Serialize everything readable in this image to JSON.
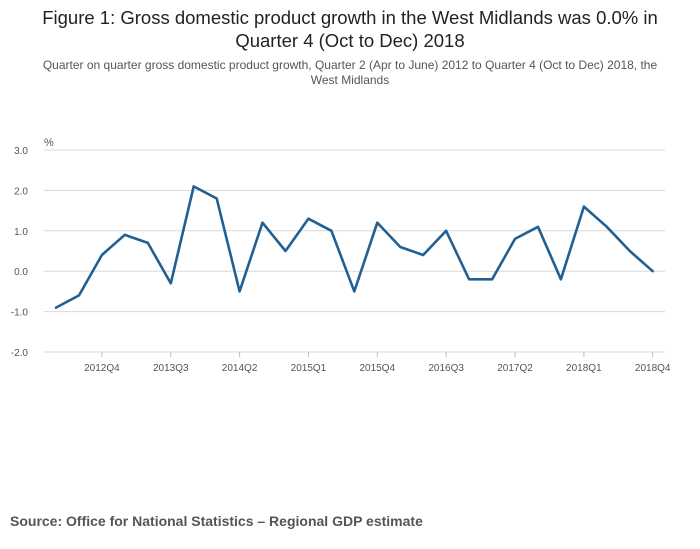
{
  "title": "Figure 1: Gross domestic product growth in the West Midlands was 0.0% in Quarter 4 (Oct to Dec) 2018",
  "subtitle": "Quarter on quarter gross domestic product growth, Quarter 2 (Apr to June) 2012 to Quarter 4 (Oct to Dec) 2018, the West Midlands",
  "source": "Source: Office for National Statistics – Regional GDP estimate",
  "chart_data": {
    "type": "line",
    "title": "Figure 1: Gross domestic product growth in the West Midlands was 0.0% in Quarter 4 (Oct to Dec) 2018",
    "xlabel": "",
    "ylabel": "%",
    "ylim": [
      -2.0,
      3.0
    ],
    "yticks": [
      3.0,
      2.0,
      1.0,
      0.0,
      -1.0,
      -2.0
    ],
    "ytick_labels": [
      "3.0",
      "2.0",
      "1.0",
      "0.0",
      "-1.0",
      "-2.0"
    ],
    "grid": true,
    "line_color": "#206095",
    "x": [
      "2012Q2",
      "2012Q3",
      "2012Q4",
      "2013Q1",
      "2013Q2",
      "2013Q3",
      "2013Q4",
      "2014Q1",
      "2014Q2",
      "2014Q3",
      "2014Q4",
      "2015Q1",
      "2015Q2",
      "2015Q3",
      "2015Q4",
      "2016Q1",
      "2016Q2",
      "2016Q3",
      "2016Q4",
      "2017Q1",
      "2017Q2",
      "2017Q3",
      "2017Q4",
      "2018Q1",
      "2018Q2",
      "2018Q3",
      "2018Q4"
    ],
    "xtick_labels": [
      "2012Q4",
      "2013Q3",
      "2014Q2",
      "2015Q1",
      "2015Q4",
      "2016Q3",
      "2017Q2",
      "2018Q1",
      "2018Q4"
    ],
    "series": [
      {
        "name": "West Midlands",
        "values": [
          -0.9,
          -0.6,
          0.4,
          0.9,
          0.7,
          -0.3,
          2.1,
          1.8,
          -0.5,
          1.2,
          0.5,
          1.3,
          1.0,
          -0.5,
          1.2,
          0.6,
          0.4,
          1.0,
          -0.2,
          -0.2,
          0.8,
          1.1,
          -0.2,
          1.6,
          1.1,
          0.5,
          0.0
        ]
      }
    ]
  }
}
